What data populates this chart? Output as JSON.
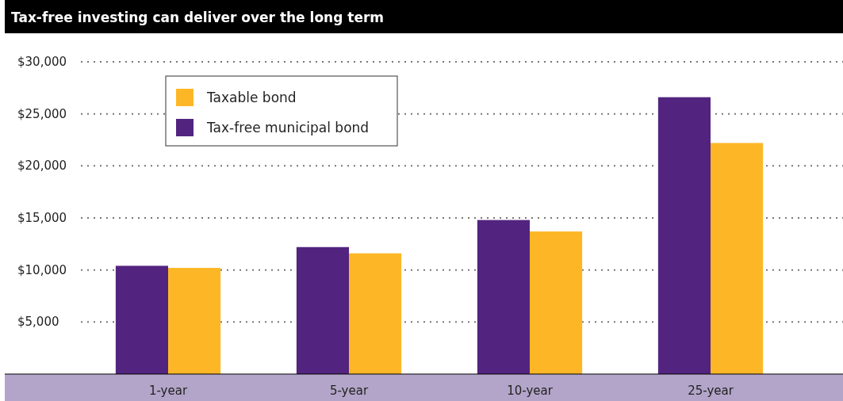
{
  "chart_data": {
    "type": "bar",
    "title": "Tax-free investing can deliver over the long term",
    "categories": [
      "1-year",
      "5-year",
      "10-year",
      "25-year"
    ],
    "series": [
      {
        "name": "Tax-free municipal bond",
        "color": "#52247f",
        "values": [
          10400,
          12200,
          14800,
          26600
        ]
      },
      {
        "name": "Taxable bond",
        "color": "#fdb726",
        "values": [
          10200,
          11600,
          13700,
          22200
        ]
      }
    ],
    "ylim": [
      0,
      30000
    ],
    "yticks": [
      {
        "value": 5000,
        "label": "$5,000"
      },
      {
        "value": 10000,
        "label": "$10,000"
      },
      {
        "value": 15000,
        "label": "$15,000"
      },
      {
        "value": 20000,
        "label": "$20,000"
      },
      {
        "value": 25000,
        "label": "$25,000"
      },
      {
        "value": 30000,
        "label": "$30,000"
      }
    ],
    "grid": "y",
    "legend": "top left"
  }
}
